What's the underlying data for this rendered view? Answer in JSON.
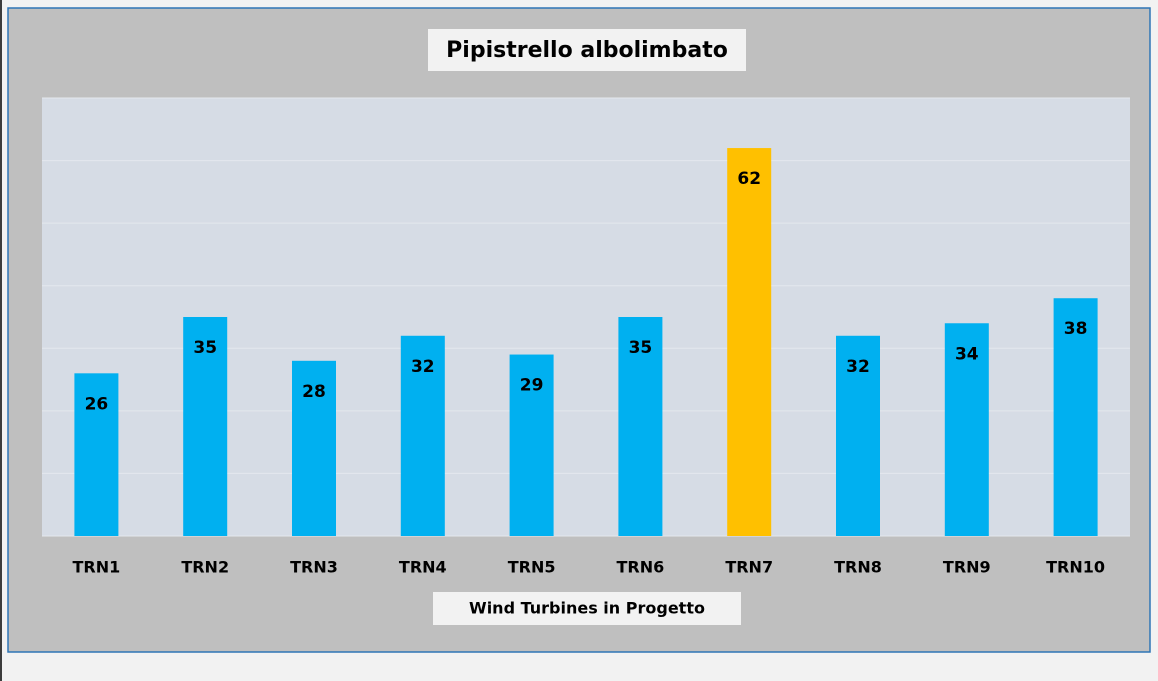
{
  "chart_data": {
    "type": "bar",
    "title": "Pipistrello albolimbato",
    "x_label": "Wind Turbines in Progetto",
    "categories": [
      "TRN1",
      "TRN2",
      "TRN3",
      "TRN4",
      "TRN5",
      "TRN6",
      "TRN7",
      "TRN8",
      "TRN9",
      "TRN10"
    ],
    "values": [
      26,
      35,
      28,
      32,
      29,
      35,
      62,
      32,
      34,
      38
    ],
    "colors": [
      "#00b0f0",
      "#00b0f0",
      "#00b0f0",
      "#00b0f0",
      "#00b0f0",
      "#00b0f0",
      "#ffc000",
      "#00b0f0",
      "#00b0f0",
      "#00b0f0"
    ],
    "ylim": [
      0,
      70
    ],
    "yticks": [
      0,
      10,
      20,
      30,
      40,
      50,
      60,
      70
    ],
    "grid": true
  }
}
